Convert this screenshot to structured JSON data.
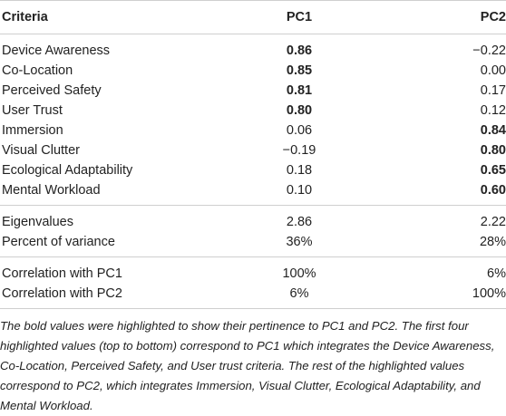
{
  "table": {
    "headers": [
      "Criteria",
      "PC1",
      "PC2"
    ],
    "loadings": [
      {
        "criteria": "Device Awareness",
        "pc1": "0.86",
        "pc2": "−0.22",
        "bold": "pc1"
      },
      {
        "criteria": "Co-Location",
        "pc1": "0.85",
        "pc2": "0.00",
        "bold": "pc1"
      },
      {
        "criteria": "Perceived Safety",
        "pc1": "0.81",
        "pc2": "0.17",
        "bold": "pc1"
      },
      {
        "criteria": "User Trust",
        "pc1": "0.80",
        "pc2": "0.12",
        "bold": "pc1"
      },
      {
        "criteria": "Immersion",
        "pc1": "0.06",
        "pc2": "0.84",
        "bold": "pc2"
      },
      {
        "criteria": "Visual Clutter",
        "pc1": "−0.19",
        "pc2": "0.80",
        "bold": "pc2"
      },
      {
        "criteria": "Ecological Adaptability",
        "pc1": "0.18",
        "pc2": "0.65",
        "bold": "pc2"
      },
      {
        "criteria": "Mental Workload",
        "pc1": "0.10",
        "pc2": "0.60",
        "bold": "pc2"
      }
    ],
    "eigen": [
      {
        "criteria": "Eigenvalues",
        "pc1": "2.86",
        "pc2": "2.22"
      },
      {
        "criteria": "Percent of variance",
        "pc1": "36%",
        "pc2": "28%"
      }
    ],
    "correlation": [
      {
        "criteria": "Correlation with PC1",
        "pc1": "100%",
        "pc2": "6%"
      },
      {
        "criteria": "Correlation with PC2",
        "pc1": "6%",
        "pc2": "100%"
      }
    ]
  },
  "footnote": "The bold values were highlighted to show their pertinence to PC1 and PC2. The first four highlighted values (top to bottom) correspond to PC1 which integrates the Device Awareness, Co-Location, Perceived Safety, and User trust criteria. The rest of the highlighted values correspond to PC2, which integrates Immersion, Visual Clutter, Ecological Adaptability, and Mental Workload."
}
